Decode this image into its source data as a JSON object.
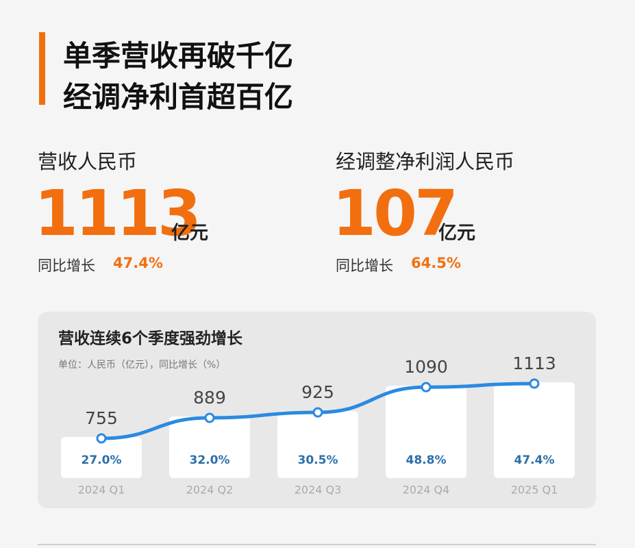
{
  "header": {
    "title_lines": [
      "单季营收再破千亿",
      "经调净利首超百亿"
    ]
  },
  "metrics": [
    {
      "label": "营收人民币",
      "value": "1113",
      "unit": "亿元",
      "growth_label": "同比增长",
      "growth": "47.4%"
    },
    {
      "label": "经调整净利润人民币",
      "value": "107",
      "unit": "亿元",
      "growth_label": "同比增长",
      "growth": "64.5%"
    }
  ],
  "chart_data": {
    "type": "line",
    "title": "营收连续6个季度强劲增长",
    "subtitle": "单位：人民币（亿元），同比增长（%）",
    "categories": [
      "2024 Q1",
      "2024 Q2",
      "2024 Q3",
      "2024 Q4",
      "2025 Q1"
    ],
    "values": [
      755,
      889,
      925,
      1090,
      1113
    ],
    "color": "#2b8ae0",
    "growth": [
      27.0,
      32.0,
      30.5,
      48.8,
      47.4
    ],
    "growth_labels": [
      "27.0%",
      "32.0%",
      "30.5%",
      "48.8%",
      "47.4%"
    ]
  }
}
